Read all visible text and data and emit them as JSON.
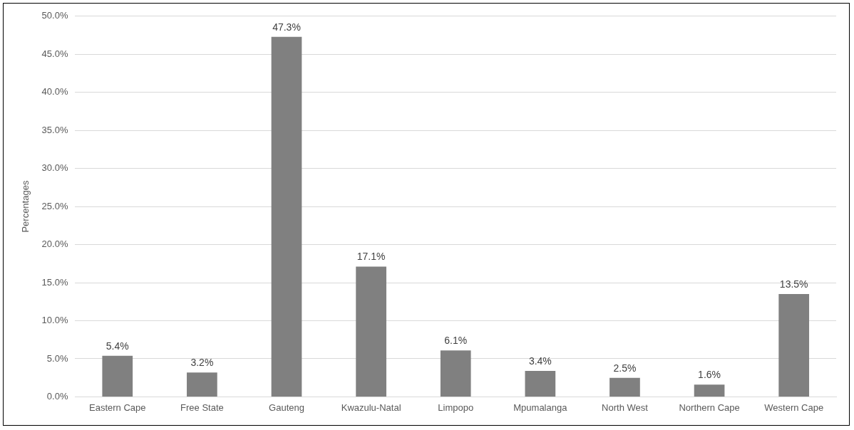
{
  "chart_data": {
    "type": "bar",
    "ylabel": "Percentages",
    "categories": [
      "Eastern Cape",
      "Free State",
      "Gauteng",
      "Kwazulu-Natal",
      "Limpopo",
      "Mpumalanga",
      "North West",
      "Northern Cape",
      "Western Cape"
    ],
    "values": [
      5.4,
      3.2,
      47.3,
      17.1,
      6.1,
      3.4,
      2.5,
      1.6,
      13.5
    ],
    "value_labels": [
      "5.4%",
      "3.2%",
      "47.3%",
      "17.1%",
      "6.1%",
      "3.4%",
      "2.5%",
      "1.6%",
      "13.5%"
    ],
    "color": "#808080",
    "ylim": [
      0,
      50
    ],
    "yticks": [
      {
        "value": 0,
        "label": "0.0%"
      },
      {
        "value": 5,
        "label": "5.0%"
      },
      {
        "value": 10,
        "label": "10.0%"
      },
      {
        "value": 15,
        "label": "15.0%"
      },
      {
        "value": 20,
        "label": "20.0%"
      },
      {
        "value": 25,
        "label": "25.0%"
      },
      {
        "value": 30,
        "label": "30.0%"
      },
      {
        "value": 35,
        "label": "35.0%"
      },
      {
        "value": 40,
        "label": "40.0%"
      },
      {
        "value": 45,
        "label": "45.0%"
      },
      {
        "value": 50,
        "label": "50.0%"
      }
    ],
    "grid": "y",
    "legend": false
  }
}
